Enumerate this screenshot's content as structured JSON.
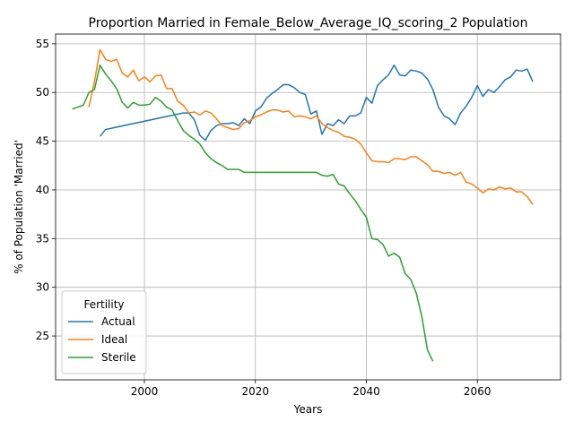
{
  "chart_data": {
    "type": "line",
    "title": "Proportion Married in Female_Below_Average_IQ_scoring_2 Population",
    "xlabel": "Years",
    "ylabel": "% of Population 'Married'",
    "xlim": [
      1984,
      2075
    ],
    "ylim": [
      20.5,
      56
    ],
    "xticks": [
      2000,
      2020,
      2040,
      2060
    ],
    "yticks": [
      25,
      30,
      35,
      40,
      45,
      50,
      55
    ],
    "grid": true,
    "legend": {
      "title": "Fertility",
      "placement": "lower-left"
    },
    "series": [
      {
        "name": "Actual",
        "color": "#1f77b4",
        "points": [
          [
            1992,
            45.5
          ],
          [
            1993,
            46.2
          ],
          [
            2007,
            47.9
          ],
          [
            2008,
            47.9
          ],
          [
            2009,
            47.2
          ],
          [
            2010,
            45.6
          ],
          [
            2011,
            45.1
          ],
          [
            2012,
            46.1
          ],
          [
            2013,
            46.6
          ],
          [
            2014,
            46.8
          ],
          [
            2015,
            46.8
          ],
          [
            2016,
            46.9
          ],
          [
            2017,
            46.6
          ],
          [
            2018,
            47.3
          ],
          [
            2019,
            46.8
          ],
          [
            2020,
            48.1
          ],
          [
            2021,
            48.5
          ],
          [
            2022,
            49.4
          ],
          [
            2023,
            49.9
          ],
          [
            2024,
            50.3
          ],
          [
            2025,
            50.8
          ],
          [
            2026,
            50.8
          ],
          [
            2027,
            50.5
          ],
          [
            2028,
            50.0
          ],
          [
            2029,
            49.8
          ],
          [
            2030,
            47.8
          ],
          [
            2031,
            48.1
          ],
          [
            2032,
            45.7
          ],
          [
            2033,
            46.8
          ],
          [
            2034,
            46.6
          ],
          [
            2035,
            47.2
          ],
          [
            2036,
            46.8
          ],
          [
            2037,
            47.6
          ],
          [
            2038,
            47.6
          ],
          [
            2039,
            47.9
          ],
          [
            2040,
            49.5
          ],
          [
            2041,
            48.9
          ],
          [
            2042,
            50.7
          ],
          [
            2043,
            51.3
          ],
          [
            2044,
            51.8
          ],
          [
            2045,
            52.8
          ],
          [
            2046,
            51.8
          ],
          [
            2047,
            51.7
          ],
          [
            2048,
            52.3
          ],
          [
            2049,
            52.2
          ],
          [
            2050,
            52.0
          ],
          [
            2051,
            51.4
          ],
          [
            2052,
            50.3
          ],
          [
            2053,
            48.5
          ],
          [
            2054,
            47.6
          ],
          [
            2055,
            47.3
          ],
          [
            2056,
            46.7
          ],
          [
            2057,
            47.9
          ],
          [
            2058,
            48.6
          ],
          [
            2059,
            49.5
          ],
          [
            2060,
            50.7
          ],
          [
            2061,
            49.6
          ],
          [
            2062,
            50.3
          ],
          [
            2063,
            50.0
          ],
          [
            2064,
            50.6
          ],
          [
            2065,
            51.3
          ],
          [
            2066,
            51.6
          ],
          [
            2067,
            52.3
          ],
          [
            2068,
            52.2
          ],
          [
            2069,
            52.4
          ],
          [
            2070,
            51.1
          ]
        ]
      },
      {
        "name": "Ideal",
        "color": "#ff7f0e",
        "points": [
          [
            1990,
            48.5
          ],
          [
            1991,
            51.1
          ],
          [
            1992,
            54.4
          ],
          [
            1993,
            53.4
          ],
          [
            1994,
            53.2
          ],
          [
            1995,
            53.4
          ],
          [
            1996,
            52.0
          ],
          [
            1997,
            51.6
          ],
          [
            1998,
            52.3
          ],
          [
            1999,
            51.2
          ],
          [
            2000,
            51.6
          ],
          [
            2001,
            51.1
          ],
          [
            2002,
            51.7
          ],
          [
            2003,
            51.8
          ],
          [
            2004,
            50.4
          ],
          [
            2005,
            50.4
          ],
          [
            2006,
            49.1
          ],
          [
            2007,
            48.7
          ],
          [
            2008,
            47.9
          ],
          [
            2009,
            48.0
          ],
          [
            2010,
            47.7
          ],
          [
            2011,
            48.1
          ],
          [
            2012,
            47.9
          ],
          [
            2013,
            47.3
          ],
          [
            2014,
            46.6
          ],
          [
            2015,
            46.4
          ],
          [
            2016,
            46.2
          ],
          [
            2017,
            46.3
          ],
          [
            2018,
            46.9
          ],
          [
            2019,
            47.1
          ],
          [
            2020,
            47.5
          ],
          [
            2021,
            47.7
          ],
          [
            2022,
            48.0
          ],
          [
            2023,
            48.2
          ],
          [
            2024,
            48.2
          ],
          [
            2025,
            48.0
          ],
          [
            2026,
            48.1
          ],
          [
            2027,
            47.5
          ],
          [
            2028,
            47.6
          ],
          [
            2029,
            47.5
          ],
          [
            2030,
            47.3
          ],
          [
            2031,
            47.6
          ],
          [
            2032,
            46.8
          ],
          [
            2033,
            46.4
          ],
          [
            2034,
            46.1
          ],
          [
            2035,
            45.9
          ],
          [
            2036,
            45.5
          ],
          [
            2037,
            45.4
          ],
          [
            2038,
            45.2
          ],
          [
            2039,
            44.7
          ],
          [
            2040,
            43.8
          ],
          [
            2041,
            43.0
          ],
          [
            2042,
            42.9
          ],
          [
            2043,
            42.9
          ],
          [
            2044,
            42.8
          ],
          [
            2045,
            43.2
          ],
          [
            2046,
            43.2
          ],
          [
            2047,
            43.1
          ],
          [
            2048,
            43.4
          ],
          [
            2049,
            43.4
          ],
          [
            2050,
            43.0
          ],
          [
            2051,
            42.6
          ],
          [
            2052,
            41.9
          ],
          [
            2053,
            41.9
          ],
          [
            2054,
            41.7
          ],
          [
            2055,
            41.8
          ],
          [
            2056,
            41.5
          ],
          [
            2057,
            41.8
          ],
          [
            2058,
            40.8
          ],
          [
            2059,
            40.6
          ],
          [
            2060,
            40.2
          ],
          [
            2061,
            39.7
          ],
          [
            2062,
            40.1
          ],
          [
            2063,
            40.0
          ],
          [
            2064,
            40.3
          ],
          [
            2065,
            40.1
          ],
          [
            2066,
            40.2
          ],
          [
            2067,
            39.8
          ],
          [
            2068,
            39.8
          ],
          [
            2069,
            39.3
          ],
          [
            2070,
            38.5
          ]
        ]
      },
      {
        "name": "Sterile",
        "color": "#2ca02c",
        "points": [
          [
            1987,
            48.3
          ],
          [
            1988,
            48.5
          ],
          [
            1989,
            48.7
          ],
          [
            1990,
            50.0
          ],
          [
            1991,
            50.3
          ],
          [
            1992,
            52.8
          ],
          [
            1993,
            51.9
          ],
          [
            1994,
            51.2
          ],
          [
            1995,
            50.4
          ],
          [
            1996,
            49.0
          ],
          [
            1997,
            48.4
          ],
          [
            1998,
            49.0
          ],
          [
            1999,
            48.7
          ],
          [
            2000,
            48.7
          ],
          [
            2001,
            48.8
          ],
          [
            2002,
            49.5
          ],
          [
            2003,
            49.1
          ],
          [
            2004,
            48.5
          ],
          [
            2005,
            48.2
          ],
          [
            2006,
            47.1
          ],
          [
            2007,
            46.1
          ],
          [
            2008,
            45.6
          ],
          [
            2009,
            45.2
          ],
          [
            2010,
            44.7
          ],
          [
            2011,
            43.8
          ],
          [
            2012,
            43.2
          ],
          [
            2013,
            42.8
          ],
          [
            2014,
            42.5
          ],
          [
            2015,
            42.1
          ],
          [
            2016,
            42.1
          ],
          [
            2017,
            42.1
          ],
          [
            2018,
            41.8
          ],
          [
            2019,
            41.8
          ],
          [
            2020,
            41.8
          ],
          [
            2025,
            41.8
          ],
          [
            2030,
            41.8
          ],
          [
            2031,
            41.8
          ],
          [
            2032,
            41.5
          ],
          [
            2033,
            41.4
          ],
          [
            2034,
            41.6
          ],
          [
            2035,
            40.6
          ],
          [
            2036,
            40.4
          ],
          [
            2037,
            39.6
          ],
          [
            2038,
            38.9
          ],
          [
            2039,
            38.0
          ],
          [
            2040,
            37.2
          ],
          [
            2041,
            35.0
          ],
          [
            2042,
            34.9
          ],
          [
            2043,
            34.4
          ],
          [
            2044,
            33.2
          ],
          [
            2045,
            33.5
          ],
          [
            2046,
            33.1
          ],
          [
            2047,
            31.4
          ],
          [
            2048,
            30.8
          ],
          [
            2049,
            29.4
          ],
          [
            2050,
            27.0
          ],
          [
            2051,
            23.6
          ],
          [
            2052,
            22.4
          ]
        ]
      }
    ]
  }
}
